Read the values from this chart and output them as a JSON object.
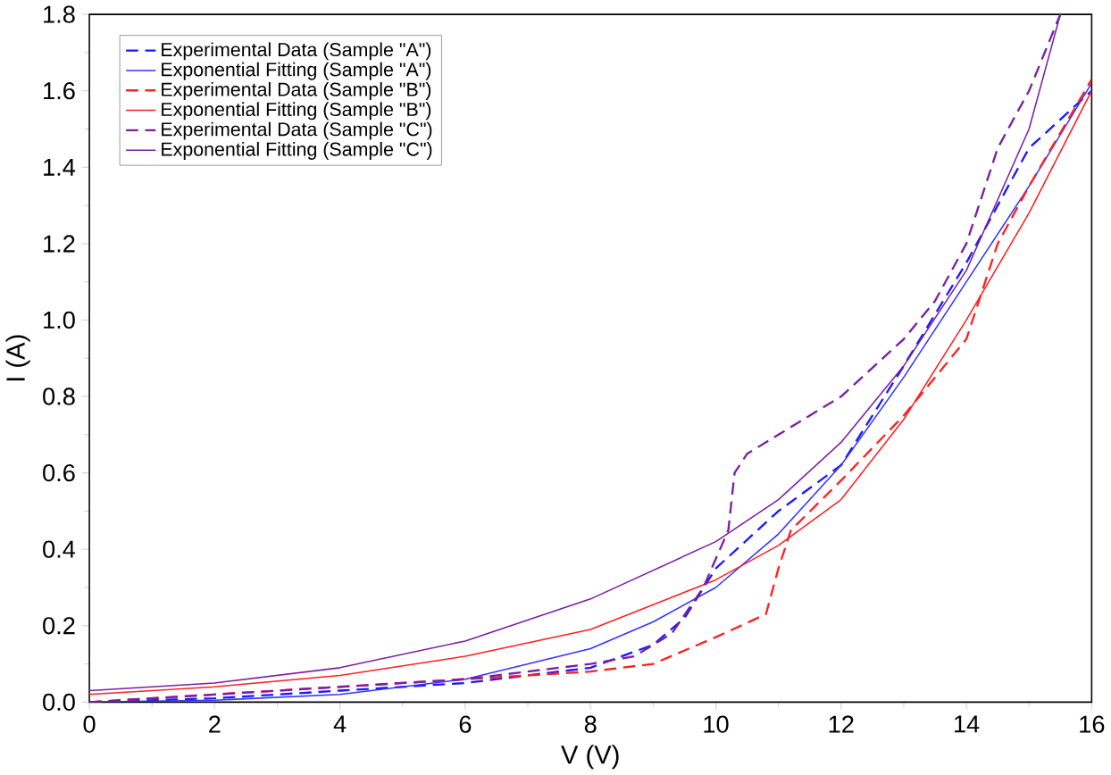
{
  "chart_data": {
    "type": "line",
    "xlabel": "V (V)",
    "ylabel": "I (A)",
    "xlim": [
      0,
      16
    ],
    "ylim": [
      0,
      1.8
    ],
    "xticks": [
      0,
      2,
      4,
      6,
      8,
      10,
      12,
      14,
      16
    ],
    "yticks": [
      {
        "value": 0,
        "label": "0.0"
      },
      {
        "value": 0.2,
        "label": "0.2"
      },
      {
        "value": 0.4,
        "label": "0.4"
      },
      {
        "value": 0.6,
        "label": "0.6"
      },
      {
        "value": 0.8,
        "label": "0.8"
      },
      {
        "value": 1,
        "label": "1.0"
      },
      {
        "value": 1.2,
        "label": "1.2"
      },
      {
        "value": 1.4,
        "label": "1.4"
      },
      {
        "value": 1.6,
        "label": "1.6"
      },
      {
        "value": 1.8,
        "label": "1.8"
      }
    ],
    "legend": "top left",
    "grid": false,
    "marker": "none",
    "series": [
      {
        "name": "Experimental Data (Sample \"A\")",
        "color": "#1a1aff",
        "line_style": "dashed",
        "x": [
          0,
          2,
          4,
          6,
          8,
          9,
          9.5,
          10,
          11,
          12,
          13,
          14,
          15,
          16
        ],
        "values": [
          0,
          0.01,
          0.03,
          0.05,
          0.09,
          0.15,
          0.22,
          0.35,
          0.5,
          0.62,
          0.88,
          1.15,
          1.45,
          1.6
        ]
      },
      {
        "name": "Exponential Fitting (Sample \"A\")",
        "color": "#3333ff",
        "line_style": "solid",
        "x": [
          0,
          2,
          4,
          6,
          8,
          9,
          10,
          11,
          12,
          13,
          14,
          15,
          16
        ],
        "values": [
          0,
          0.005,
          0.02,
          0.06,
          0.14,
          0.21,
          0.3,
          0.44,
          0.62,
          0.85,
          1.1,
          1.35,
          1.62
        ]
      },
      {
        "name": "Experimental Data (Sample \"B\")",
        "color": "#ff2020",
        "line_style": "dashed",
        "x": [
          0,
          2,
          4,
          6,
          8,
          9,
          10,
          10.8,
          11,
          11.2,
          12,
          13,
          14,
          14.5,
          15,
          16
        ],
        "values": [
          0,
          0.02,
          0.04,
          0.06,
          0.08,
          0.1,
          0.17,
          0.23,
          0.35,
          0.45,
          0.58,
          0.75,
          0.95,
          1.2,
          1.35,
          1.63
        ]
      },
      {
        "name": "Exponential Fitting (Sample \"B\")",
        "color": "#ff2020",
        "line_style": "solid",
        "x": [
          0,
          2,
          4,
          6,
          8,
          10,
          11,
          12,
          13,
          14,
          15,
          16
        ],
        "values": [
          0.02,
          0.04,
          0.07,
          0.12,
          0.19,
          0.32,
          0.41,
          0.53,
          0.74,
          1.0,
          1.28,
          1.6
        ]
      },
      {
        "name": "Experimental Data (Sample \"C\")",
        "color": "#7b1fa2",
        "line_style": "dashed",
        "x": [
          0,
          2,
          4,
          6,
          8,
          8.7,
          9.3,
          9.8,
          10.2,
          10.3,
          10.5,
          11,
          12,
          13,
          13.5,
          14,
          14.5,
          15,
          15.5
        ],
        "values": [
          0,
          0.02,
          0.04,
          0.06,
          0.1,
          0.12,
          0.18,
          0.3,
          0.45,
          0.6,
          0.65,
          0.7,
          0.8,
          0.95,
          1.05,
          1.2,
          1.45,
          1.6,
          1.8
        ]
      },
      {
        "name": "Exponential Fitting (Sample \"C\")",
        "color": "#7b1fa2",
        "line_style": "solid",
        "x": [
          0,
          2,
          4,
          6,
          8,
          10,
          11,
          12,
          13,
          14,
          15,
          15.5
        ],
        "values": [
          0.03,
          0.05,
          0.09,
          0.16,
          0.27,
          0.42,
          0.53,
          0.68,
          0.88,
          1.13,
          1.5,
          1.8
        ]
      }
    ]
  }
}
